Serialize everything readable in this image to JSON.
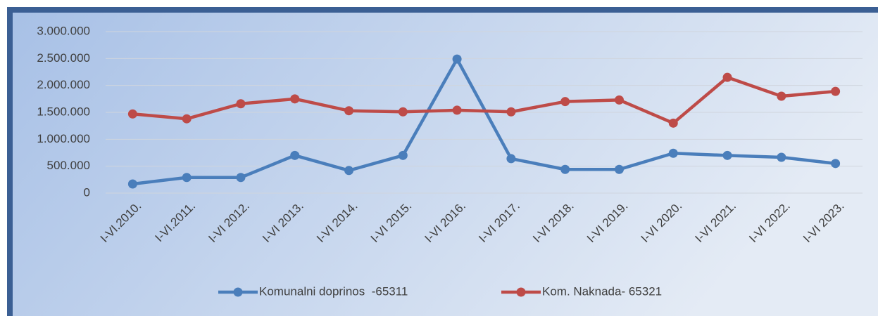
{
  "chart_data": {
    "type": "line",
    "categories": [
      "I-VI.2010.",
      "I-VI.2011.",
      "I-VI 2012.",
      "I-VI 2013.",
      "I-VI 2014.",
      "I-VI 2015.",
      "I-VI 2016.",
      "I-VI 2017.",
      "I-VI 2018.",
      "I-VI 2019.",
      "I-VI 2020.",
      "I-VI 2021.",
      "I-VI 2022.",
      "I-VI 2023."
    ],
    "series": [
      {
        "name": "Komunalni doprinos  -65311",
        "color": "#4a7ebb",
        "values": [
          170000,
          290000,
          290000,
          700000,
          420000,
          700000,
          2490000,
          640000,
          440000,
          440000,
          740000,
          700000,
          665000,
          550000
        ]
      },
      {
        "name": "Kom. Naknada- 65321",
        "color": "#be4b48",
        "values": [
          1470000,
          1380000,
          1660000,
          1750000,
          1530000,
          1510000,
          1540000,
          1510000,
          1700000,
          1730000,
          1300000,
          2150000,
          1800000,
          1890000
        ]
      }
    ],
    "ylim": [
      0,
      3000000
    ],
    "yticks": [
      0,
      {
        "value": 500000,
        "label": "500.000"
      },
      {
        "value": 1000000,
        "label": "1.000.000"
      },
      {
        "value": 1500000,
        "label": "1.500.000"
      },
      {
        "value": 2000000,
        "label": "2.000.000"
      },
      {
        "value": 2500000,
        "label": "2.500.000"
      },
      {
        "value": 3000000,
        "label": "3.000.000"
      }
    ],
    "grid": true,
    "legend": "bottom"
  }
}
